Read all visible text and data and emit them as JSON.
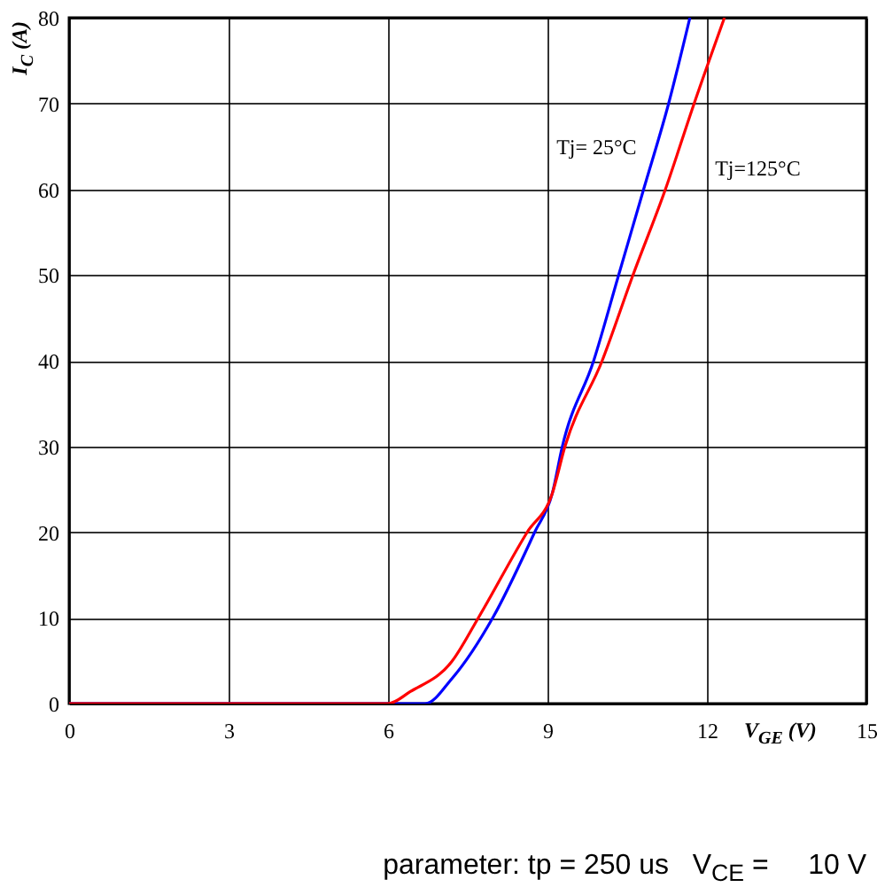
{
  "chart_data": {
    "type": "line",
    "xlabel": "V$_{GE}$ (V)",
    "ylabel": "I$_{C}$ (A)",
    "annotations": [
      "parameter: tp = 250 us   V$_{CE}$ =     10 V"
    ],
    "series": [
      {
        "name": "Tj= 25°C",
        "color": "#0000ff",
        "x": [
          0,
          6.7,
          7.2,
          7.97,
          8.76,
          9.09,
          9.28,
          9.87,
          10.34,
          10.81,
          11.28,
          11.68
        ],
        "values": [
          0,
          0,
          2.9,
          10,
          20,
          24.5,
          30,
          40,
          50,
          60,
          70,
          80
        ]
      },
      {
        "name": "Tj=125°C",
        "color": "#ff0000",
        "x": [
          0,
          6.0,
          6.42,
          7.2,
          7.7,
          8.62,
          9.09,
          9.33,
          10.03,
          10.61,
          11.22,
          11.76,
          12.33
        ],
        "values": [
          0,
          0,
          1.4,
          4.9,
          10,
          20,
          24.5,
          30,
          40,
          50,
          60,
          70,
          80
        ]
      }
    ],
    "xlim": [
      0,
      15
    ],
    "xticks": [
      0,
      3,
      6,
      9,
      12,
      15
    ],
    "ylim": [
      0,
      80
    ],
    "yticks": [
      0,
      10,
      20,
      30,
      40,
      50,
      60,
      70,
      80
    ],
    "grid": true
  }
}
